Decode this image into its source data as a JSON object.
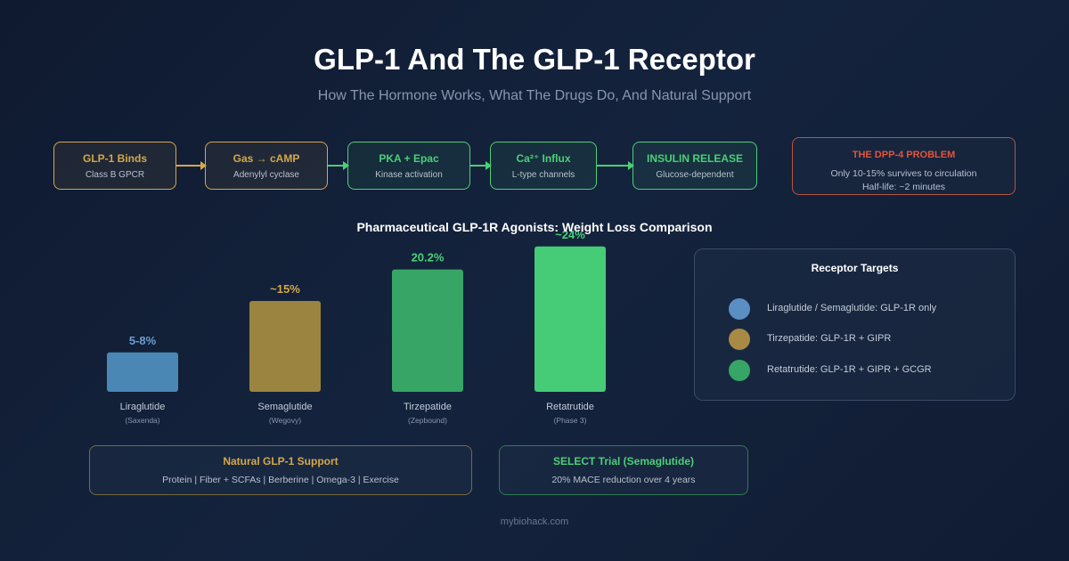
{
  "header": {
    "title": "GLP-1 And The GLP-1 Receptor",
    "subtitle": "How The Hormone Works, What The Drugs Do, And Natural Support"
  },
  "pathway": [
    {
      "title": "GLP-1 Binds",
      "sub": "Class B GPCR",
      "color": "#d4a84a"
    },
    {
      "title": "Gas → cAMP",
      "sub": "Adenylyl cyclase",
      "color": "#d4a84a"
    },
    {
      "title": "PKA + Epac",
      "sub": "Kinase activation",
      "color": "#4ccf77"
    },
    {
      "title": "Ca²⁺ Influx",
      "sub": "L-type channels",
      "color": "#4ccf77"
    },
    {
      "title": "INSULIN RELEASE",
      "sub": "Glucose-dependent",
      "color": "#4ccf77"
    }
  ],
  "dpp4": {
    "title": "THE DPP-4 PROBLEM",
    "line1": "Only 10-15% survives to circulation",
    "line2": "Half-life: ~2 minutes"
  },
  "chart_data": {
    "type": "bar",
    "title": "Pharmaceutical GLP-1R Agonists: Weight Loss Comparison",
    "categories": [
      "Liraglutide",
      "Semaglutide",
      "Tirzepatide",
      "Retatrutide"
    ],
    "brands": [
      "(Saxenda)",
      "(Wegovy)",
      "(Zepbound)",
      "(Phase 3)"
    ],
    "values": [
      6.5,
      15,
      20.2,
      24
    ],
    "value_labels": [
      "5-8%",
      "~15%",
      "20.2%",
      "~24%"
    ],
    "colors": [
      "#4a87b5",
      "#9a8440",
      "#37a565",
      "#46cc76"
    ],
    "label_colors": [
      "#6a9fcf",
      "#d4a84a",
      "#4ccf77",
      "#4ccf77"
    ],
    "ylim": [
      0,
      25
    ],
    "grid": false
  },
  "legend": {
    "title": "Receptor Targets",
    "items": [
      {
        "label": "Liraglutide / Semaglutide: GLP-1R only",
        "color": "#5b8fc4"
      },
      {
        "label": "Tirzepatide: GLP-1R + GIPR",
        "color": "#a88a45"
      },
      {
        "label": "Retatrutide: GLP-1R + GIPR + GCGR",
        "color": "#37a565"
      }
    ]
  },
  "natural": {
    "title": "Natural GLP-1 Support",
    "sub": "Protein | Fiber + SCFAs | Berberine | Omega-3 | Exercise"
  },
  "select": {
    "title": "SELECT Trial (Semaglutide)",
    "sub": "20% MACE reduction over 4 years"
  },
  "footer": "mybiohack.com"
}
